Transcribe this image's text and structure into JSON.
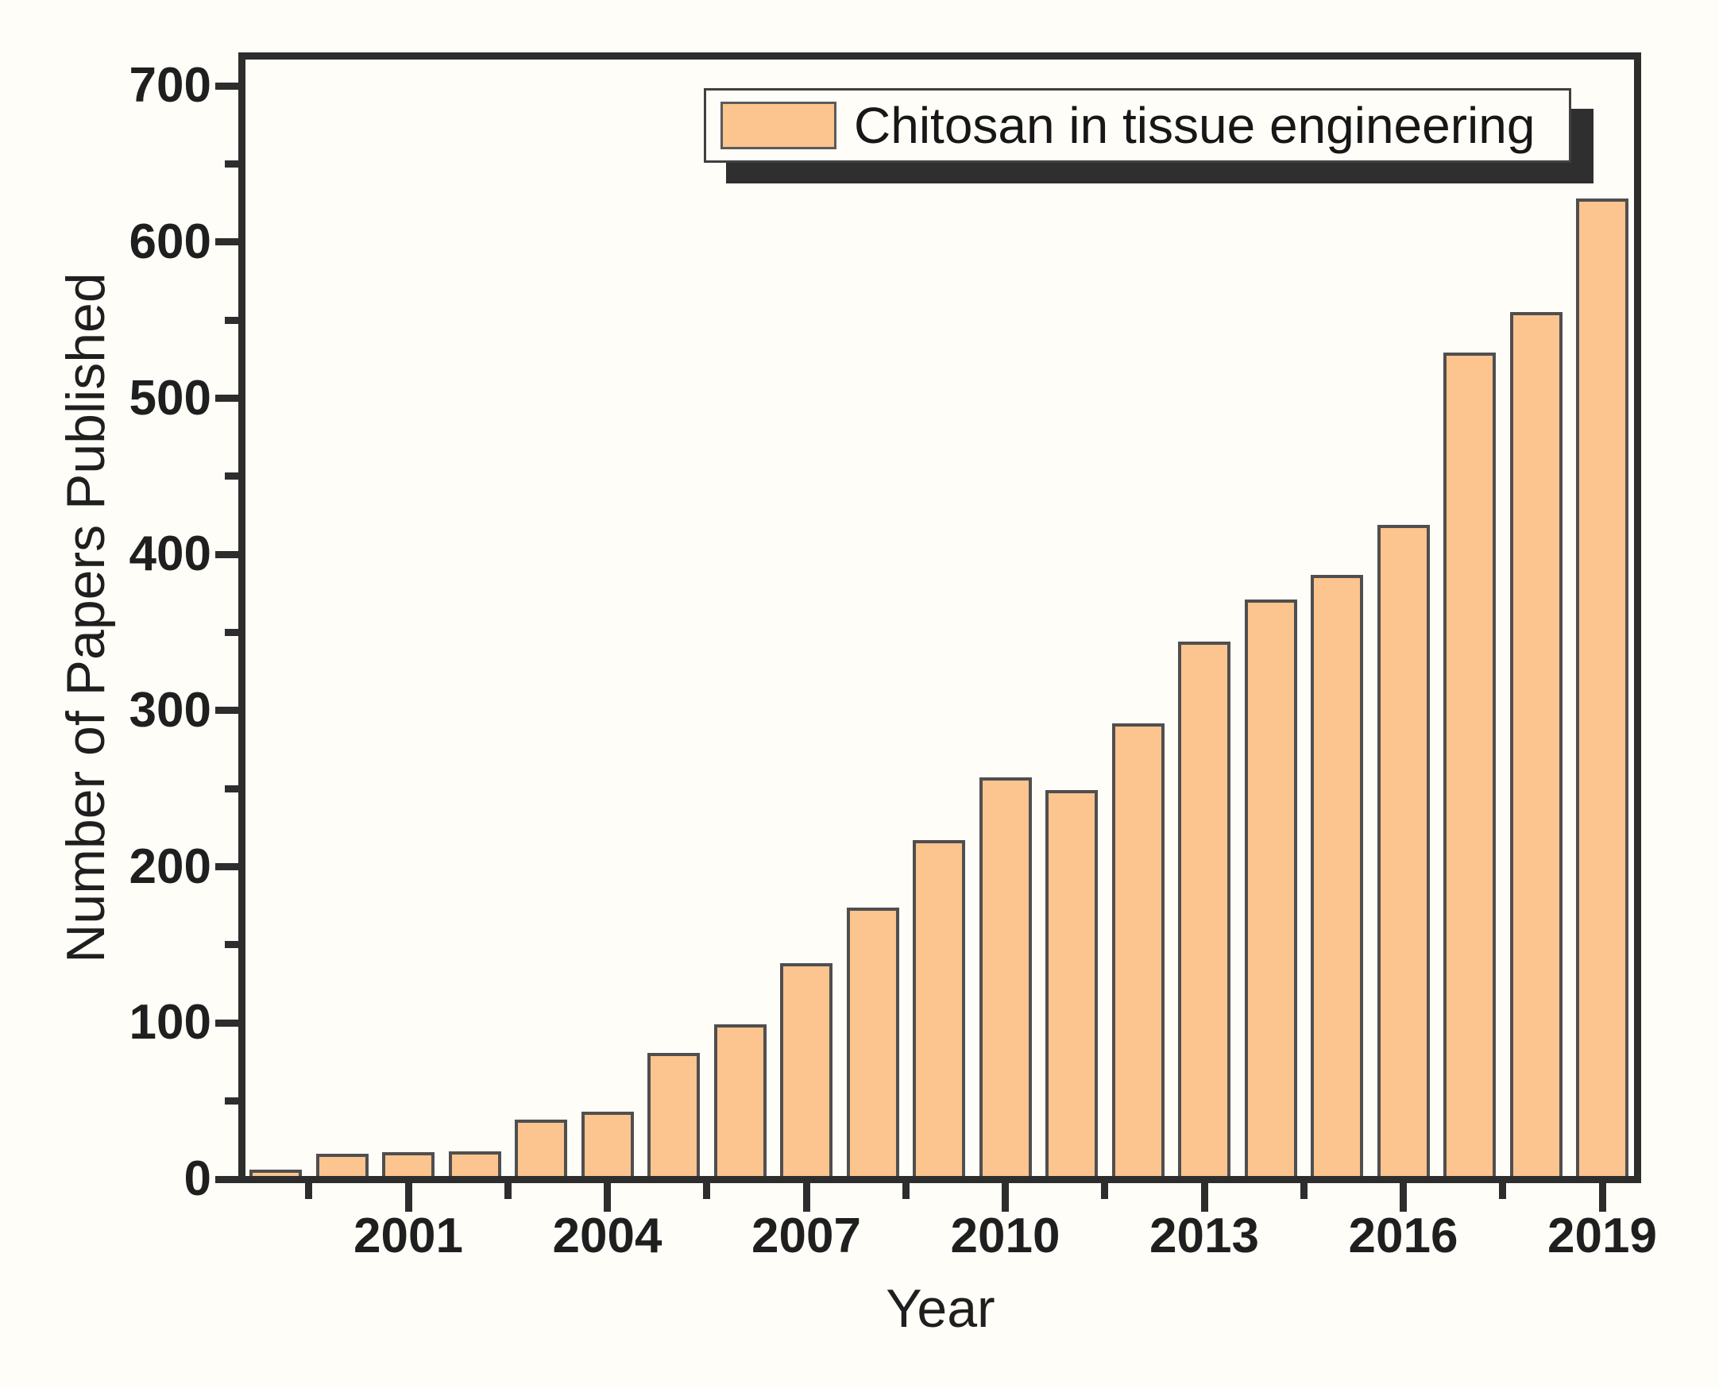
{
  "figure": {
    "background_color": "#fffdf8",
    "frame_color": "#2d2d2d",
    "text_color": "#1f1f1f"
  },
  "legend": {
    "label": "Chitosan in tissue engineering",
    "swatch_fill": "#fcc48e",
    "swatch_border": "#5a5a5a",
    "shadow_color": "#2f2f2f",
    "position": "top-right-inside"
  },
  "chart_data": {
    "type": "bar",
    "title": "",
    "xlabel": "Year",
    "ylabel": "Number of Papers Published",
    "series": [
      {
        "name": "Chitosan in tissue engineering",
        "values": [
          4,
          14,
          15,
          16,
          36,
          41,
          79,
          97,
          136,
          172,
          215,
          255,
          247,
          290,
          342,
          369,
          385,
          417,
          527,
          553,
          626
        ]
      }
    ],
    "categories": [
      1999,
      2000,
      2001,
      2002,
      2003,
      2004,
      2005,
      2006,
      2007,
      2008,
      2009,
      2010,
      2011,
      2012,
      2013,
      2014,
      2015,
      2016,
      2017,
      2018,
      2019
    ],
    "bar_fill": "#fcc48e",
    "bar_border": "#4f4f4f",
    "xlim": [
      1998.5,
      2019.6
    ],
    "ylim": [
      0,
      719
    ],
    "x_major_ticks": [
      2001,
      2004,
      2007,
      2010,
      2013,
      2016,
      2019
    ],
    "x_minor_ticks": [
      1999.5,
      2002.5,
      2005.5,
      2008.5,
      2011.5,
      2014.5,
      2017.5
    ],
    "y_major_ticks": [
      0,
      100,
      200,
      300,
      400,
      500,
      600,
      700
    ],
    "y_minor_ticks": [
      50,
      150,
      250,
      350,
      450,
      550,
      650
    ],
    "grid": false,
    "legend_position": "top-right"
  }
}
